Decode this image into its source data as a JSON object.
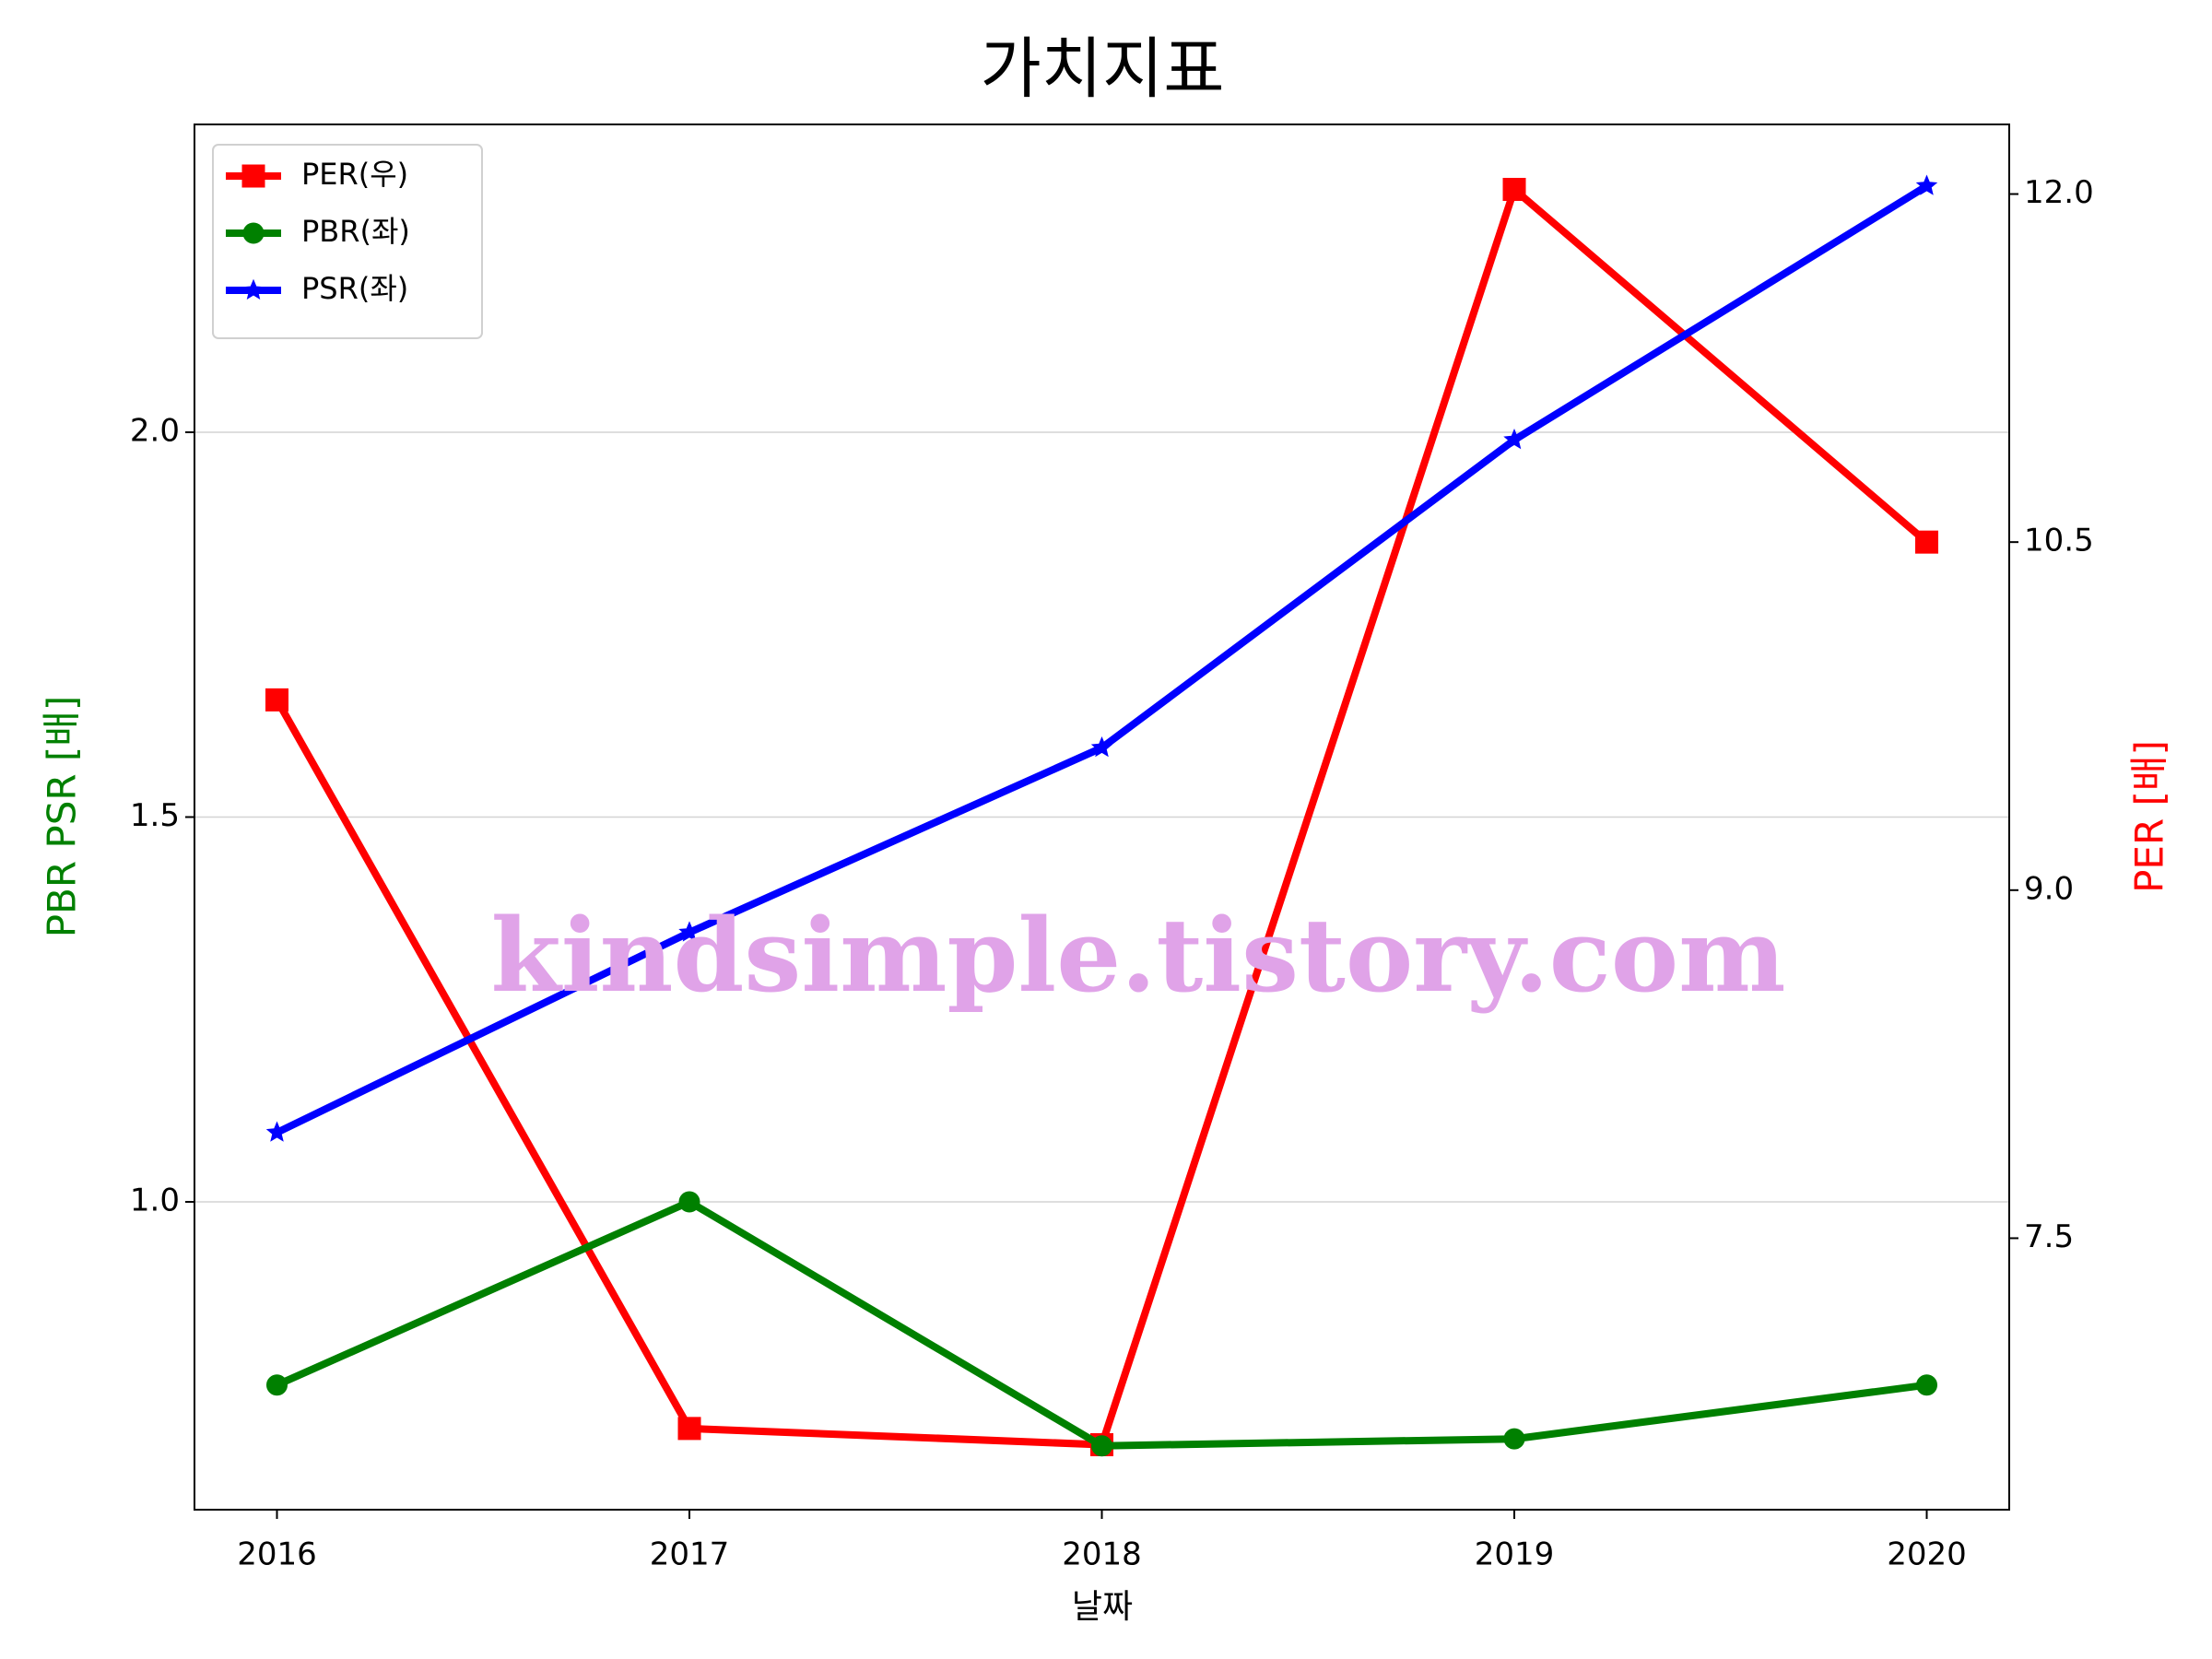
{
  "chart_data": {
    "type": "line",
    "title": "가치지표",
    "xlabel": "날짜",
    "ylabel": "PBR PSR [배]",
    "y2label": "PER [배]",
    "watermark": "kindsimple.tistory.com",
    "x": [
      2016,
      2017,
      2018,
      2019,
      2020
    ],
    "xlim": [
      2015.8,
      2020.2
    ],
    "xticks": [
      2016,
      2017,
      2018,
      2019,
      2020
    ],
    "ylim": [
      0.6,
      2.4
    ],
    "yticks": [
      {
        "value": 1,
        "label": "1.0"
      },
      1.5,
      {
        "value": 2,
        "label": "2.0"
      }
    ],
    "y2lim": [
      6.33,
      12.3
    ],
    "y2ticks": [
      7.5,
      {
        "value": 9,
        "label": "9.0"
      },
      10.5,
      {
        "value": 12,
        "label": "12.0"
      }
    ],
    "grid": true,
    "legend": "upper left",
    "ylabel_color": "green",
    "y2label_color": "red",
    "series": [
      {
        "name": "PER(우)",
        "color": "#ff0000",
        "marker": "square",
        "axis": "y2",
        "values": [
          9.82,
          6.68,
          6.61,
          12.02,
          10.5
        ]
      },
      {
        "name": "PBR(좌)",
        "color": "#008000",
        "marker": "circle",
        "values": [
          0.762,
          1.0,
          0.683,
          0.692,
          0.762
        ]
      },
      {
        "name": "PSR(좌)",
        "color": "#0000ff",
        "marker": "star",
        "values": [
          1.09,
          1.35,
          1.59,
          1.99,
          2.32
        ]
      }
    ]
  }
}
